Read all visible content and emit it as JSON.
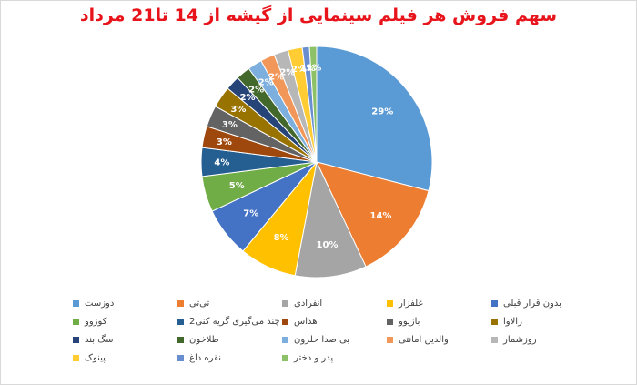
{
  "chart_data": {
    "type": "pie",
    "title": "سهم فروش هر فیلم سینمایی از گیشه از 14 تا21 مرداد",
    "legend_position": "bottom",
    "slices": [
      {
        "name": "دوزست",
        "value": 29,
        "label": "29%",
        "color": "#5b9bd5"
      },
      {
        "name": "تی‌تی",
        "value": 14,
        "label": "14%",
        "color": "#ed7d31"
      },
      {
        "name": "انفرادی",
        "value": 10,
        "label": "10%",
        "color": "#a5a5a5"
      },
      {
        "name": "علفزار",
        "value": 8,
        "label": "8%",
        "color": "#ffc000"
      },
      {
        "name": "بدون قرار قبلی",
        "value": 7,
        "label": "7%",
        "color": "#4472c4"
      },
      {
        "name": "کوزوو",
        "value": 5,
        "label": "5%",
        "color": "#70ad47"
      },
      {
        "name": "چند می‌گیری گریه کنی2",
        "value": 4,
        "label": "4%",
        "color": "#255e91"
      },
      {
        "name": "هداس",
        "value": 3,
        "label": "3%",
        "color": "#9e480e"
      },
      {
        "name": "بازیوو",
        "value": 3,
        "label": "3%",
        "color": "#636363"
      },
      {
        "name": "زالاوا",
        "value": 3,
        "label": "3%",
        "color": "#997300"
      },
      {
        "name": "سگ بند",
        "value": 2,
        "label": "2%",
        "color": "#264478"
      },
      {
        "name": "طلاخون",
        "value": 2,
        "label": "2%",
        "color": "#43682b"
      },
      {
        "name": "بی صدا حلزون",
        "value": 2,
        "label": "2%",
        "color": "#7cafdd"
      },
      {
        "name": "والدین امانتی",
        "value": 2,
        "label": "2%",
        "color": "#f1975a"
      },
      {
        "name": "روزشمار",
        "value": 2,
        "label": "2%",
        "color": "#b7b7b7"
      },
      {
        "name": "پینوک",
        "value": 2,
        "label": "2%",
        "color": "#ffcd33"
      },
      {
        "name": "نقره داغ",
        "value": 1,
        "label": "1%",
        "color": "#698ed0"
      },
      {
        "name": "پدر و دختر",
        "value": 1,
        "label": "1%",
        "color": "#8cc168"
      }
    ]
  }
}
